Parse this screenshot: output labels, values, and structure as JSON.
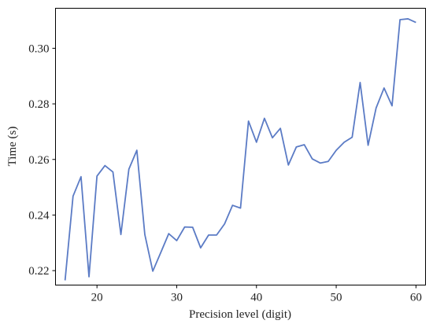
{
  "chart_data": {
    "type": "line",
    "xlabel": "Precision level (digit)",
    "ylabel": "Time (s)",
    "xlim": [
      14.8,
      61.2
    ],
    "ylim": [
      0.2148,
      0.3144
    ],
    "xticks": [
      20,
      30,
      40,
      50,
      60
    ],
    "yticks": [
      0.22,
      0.24,
      0.26,
      0.28,
      0.3
    ],
    "ytick_labels": [
      "0.22",
      "0.24",
      "0.26",
      "0.28",
      "0.30"
    ],
    "grid": false,
    "series": [
      {
        "color": "#5b7bc5",
        "x": [
          16,
          17,
          18,
          19,
          20,
          21,
          22,
          23,
          24,
          25,
          26,
          27,
          28,
          29,
          30,
          31,
          32,
          33,
          34,
          35,
          36,
          37,
          38,
          39,
          40,
          41,
          42,
          43,
          44,
          45,
          46,
          47,
          48,
          49,
          50,
          51,
          52,
          53,
          54,
          55,
          56,
          57,
          58,
          59,
          60
        ],
        "y": [
          0.2165,
          0.2468,
          0.2538,
          0.2178,
          0.254,
          0.2578,
          0.2555,
          0.233,
          0.2565,
          0.2633,
          0.233,
          0.2198,
          0.2265,
          0.2333,
          0.2308,
          0.2357,
          0.2356,
          0.2282,
          0.2328,
          0.2328,
          0.2368,
          0.2435,
          0.2425,
          0.2738,
          0.2662,
          0.2748,
          0.2678,
          0.2712,
          0.258,
          0.2645,
          0.2653,
          0.2602,
          0.2587,
          0.2593,
          0.2633,
          0.2662,
          0.268,
          0.2877,
          0.2651,
          0.2785,
          0.2857,
          0.2793,
          0.3103,
          0.3106,
          0.3093
        ]
      }
    ]
  }
}
